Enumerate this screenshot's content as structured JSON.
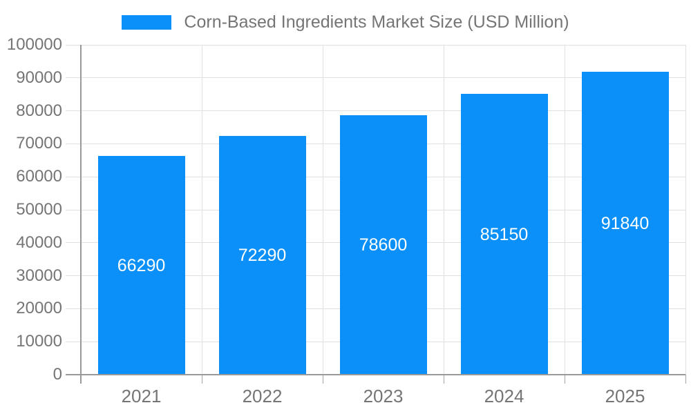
{
  "legend": {
    "label": "Corn-Based Ingredients Market Size (USD Million)"
  },
  "chart_data": {
    "type": "bar",
    "title": "",
    "categories": [
      "2021",
      "2022",
      "2023",
      "2024",
      "2025"
    ],
    "series": [
      {
        "name": "Corn-Based Ingredients Market Size (USD Million)",
        "values": [
          66290,
          72290,
          78600,
          85150,
          91840
        ]
      }
    ],
    "bar_labels": [
      "66290",
      "72290",
      "78600",
      "85150",
      "91840"
    ],
    "xlabel": "",
    "ylabel": "",
    "ylim": [
      0,
      100000
    ],
    "ytick_step": 10000,
    "ytick_labels": [
      "0",
      "10000",
      "20000",
      "30000",
      "40000",
      "50000",
      "60000",
      "70000",
      "80000",
      "90000",
      "100000"
    ],
    "grid": true,
    "legend_position": "top-center",
    "bar_label_position": "center-inside",
    "colors": {
      "bar": "#0a90f8",
      "bar_label": "#ffffff",
      "axis_line": "#999999",
      "axis_tick": "#a6a6a6",
      "gridline": "#e0e0e0",
      "tick_text": "#757575",
      "legend_text": "#757575",
      "background": "#ffffff"
    }
  }
}
